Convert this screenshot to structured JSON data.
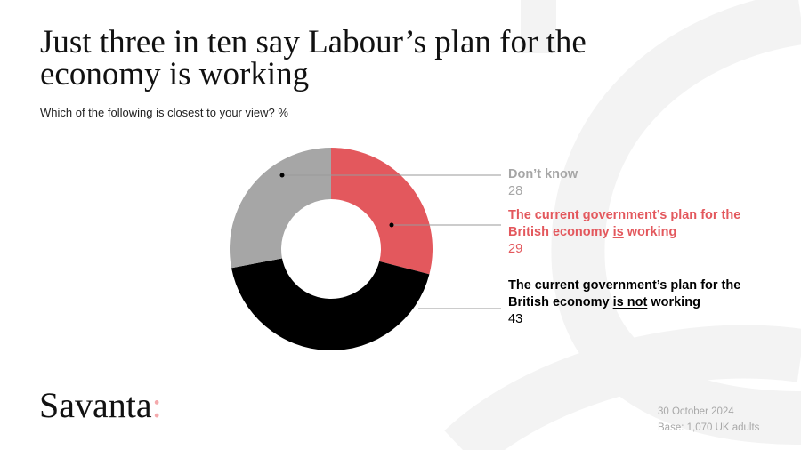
{
  "title": "Just three in ten say Labour’s plan for the economy is working",
  "subtitle": "Which of the following is closest to your view? %",
  "chart_data": {
    "type": "pie",
    "donut": true,
    "title": "Just three in ten say Labour’s plan for the economy is working",
    "subtitle": "Which of the following is closest to your view? %",
    "slices": [
      {
        "label_pre": "The current government’s plan for the British economy ",
        "label_em": "is",
        "label_post": " working",
        "label": "The current government’s plan for the British economy is working",
        "value": 29,
        "color": "#e3585d"
      },
      {
        "label_pre": "The current government’s plan for the British economy ",
        "label_em": "is not",
        "label_post": " working",
        "label": "The current government’s plan for the British economy is not working",
        "value": 43,
        "color": "#000000"
      },
      {
        "label_pre": "Don’t know",
        "label_em": "",
        "label_post": "",
        "label": "Don’t know",
        "value": 28,
        "color": "#a6a6a6"
      }
    ],
    "legend_placement": "right"
  },
  "brand": {
    "name": "Savanta",
    "mark": ":"
  },
  "footer": {
    "date": "30 October 2024",
    "base": "Base: 1,070 UK adults"
  }
}
